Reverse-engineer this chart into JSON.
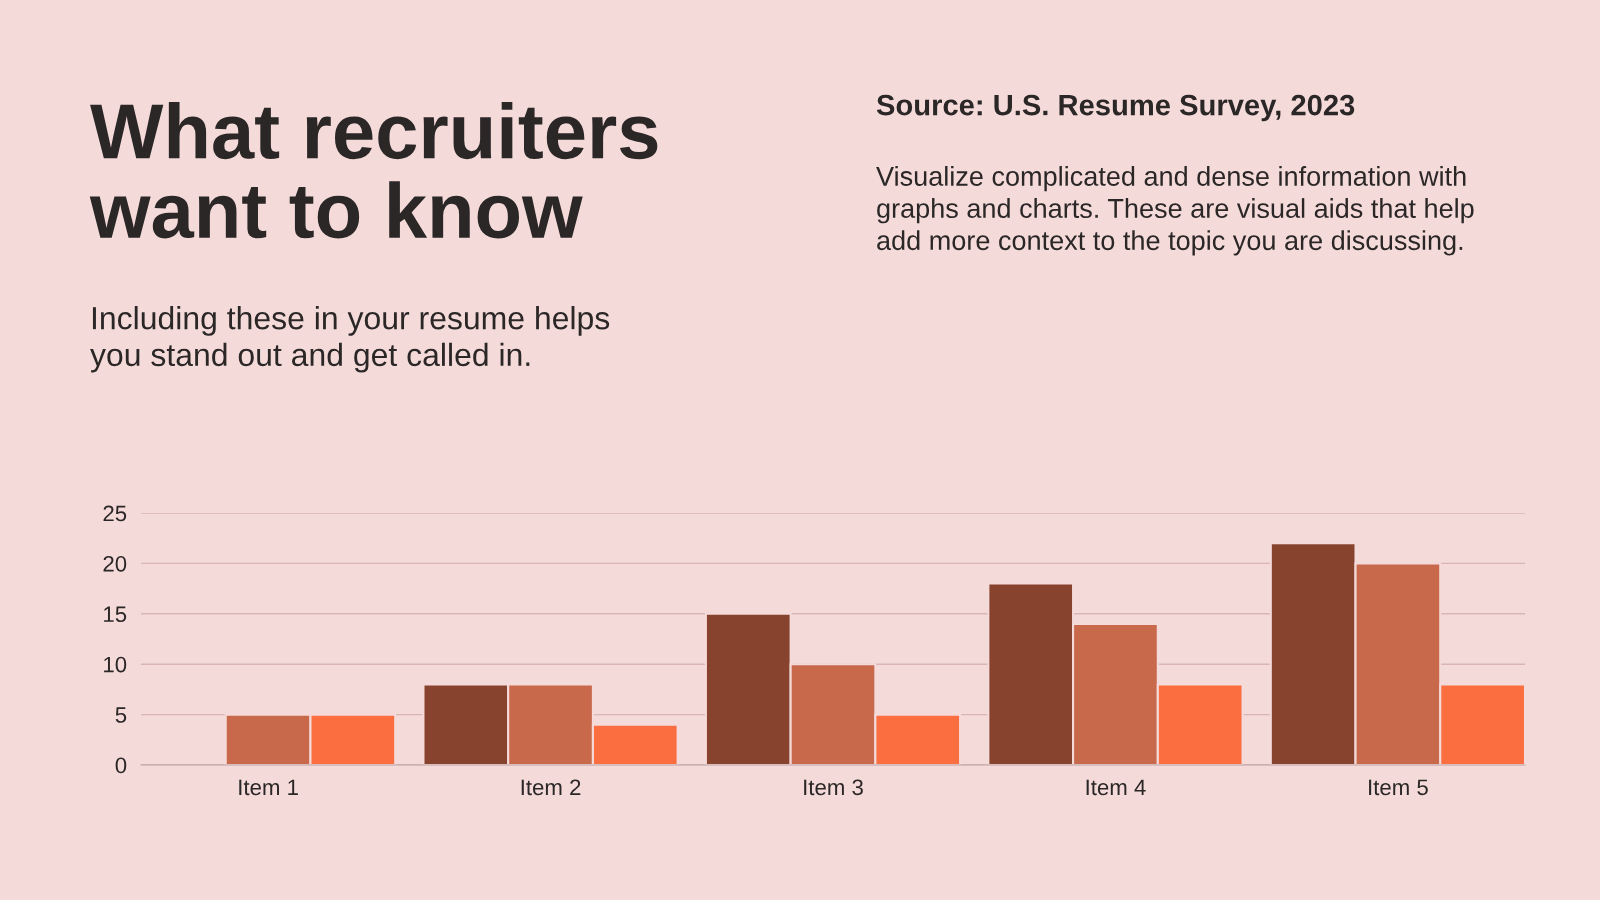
{
  "chart_data": {
    "type": "bar",
    "title": "What recruiters\nwant to know",
    "subtitle": "Including these in your resume helps\nyou stand out and get called in.",
    "annotations": [
      "Source: U.S. Resume Survey, 2023",
      "Visualize complicated and dense information with\ngraphs and charts. These are visual aids that help\nadd more context to the topic you are discussing."
    ],
    "categories": [
      "Item 1",
      "Item 2",
      "Item 3",
      "Item 4",
      "Item 5"
    ],
    "series": [
      {
        "color": "#87432e",
        "values": [
          null,
          8,
          15,
          18,
          22
        ]
      },
      {
        "color": "#c8694b",
        "values": [
          5,
          8,
          10,
          14,
          20
        ]
      },
      {
        "color": "#fa6e3f",
        "values": [
          5,
          4,
          5,
          8,
          8
        ]
      }
    ],
    "ylim": [
      0,
      25
    ],
    "yticks": [
      0,
      5,
      10,
      15,
      20,
      25
    ],
    "grid": "y",
    "legend": false
  }
}
